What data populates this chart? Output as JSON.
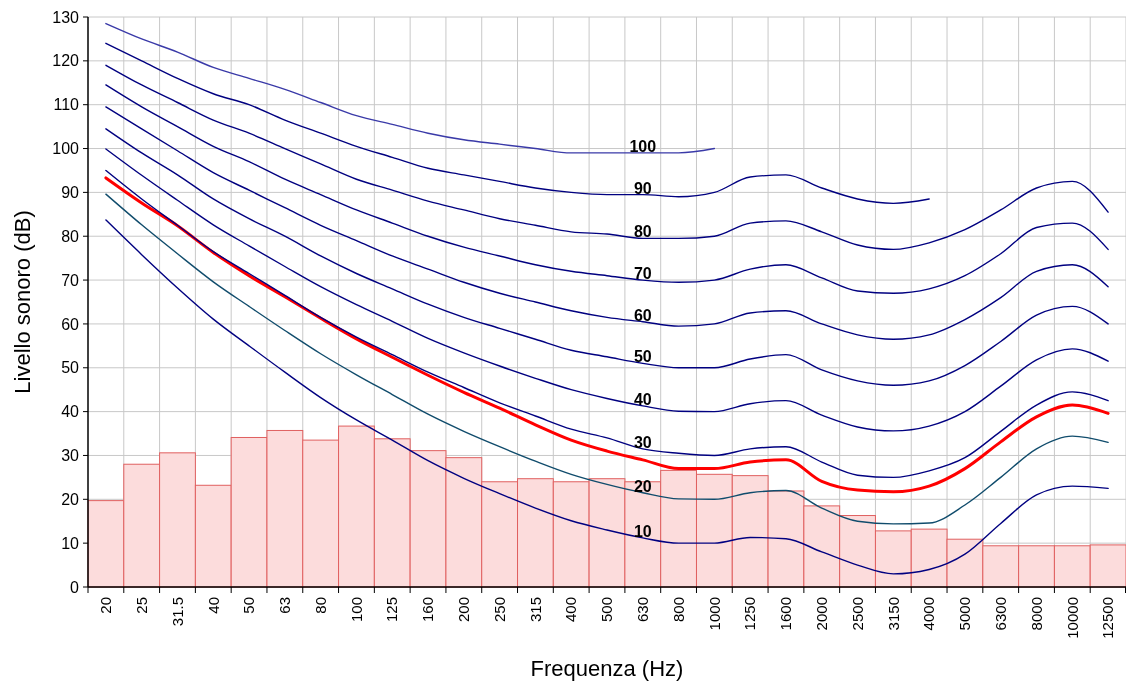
{
  "chart_data": {
    "type": "bar",
    "xlabel": "Frequenza (Hz)",
    "ylabel": "Livello sonoro (dB)",
    "categories": [
      "20",
      "25",
      "31.5",
      "40",
      "50",
      "63",
      "80",
      "100",
      "125",
      "160",
      "200",
      "250",
      "315",
      "400",
      "500",
      "630",
      "800",
      "1000",
      "1250",
      "1600",
      "2000",
      "2500",
      "3150",
      "4000",
      "5000",
      "6300",
      "8000",
      "10000",
      "12500"
    ],
    "ylim": [
      0,
      130
    ],
    "yticks": [
      0,
      10,
      20,
      30,
      40,
      50,
      60,
      70,
      80,
      90,
      100,
      110,
      120,
      130
    ],
    "grid": true,
    "marker": "none",
    "line_style": "solid",
    "series": [
      {
        "color": "#fcdcdc",
        "values": [
          19.7,
          28,
          30.6,
          23.2,
          34.1,
          35.7,
          33.5,
          36.7,
          33.8,
          31.1,
          29.5,
          24,
          24.7,
          24,
          24.7,
          24,
          26.6,
          25.7,
          25.4,
          21.9,
          18.5,
          16.3,
          12.8,
          13.2,
          10.9,
          9.4,
          9.4,
          9.4,
          9.6
        ]
      },
      {
        "type": "line",
        "name": "10",
        "color": "#000080",
        "values": [
          83.7,
          75.8,
          68.2,
          61.1,
          55,
          49,
          43.2,
          38.1,
          33.5,
          28.8,
          24.8,
          21.3,
          18,
          15.1,
          13,
          11.2,
          10,
          10,
          11.3,
          11,
          8,
          5,
          3,
          4,
          7.5,
          14.5,
          21,
          23,
          22.5
        ]
      },
      {
        "type": "line",
        "name": "20",
        "color": "#104c6c",
        "values": [
          89.6,
          82.6,
          76,
          69.6,
          64,
          58.5,
          53.2,
          48.4,
          43.9,
          39.4,
          35.5,
          32,
          28.7,
          25.7,
          23.4,
          21.5,
          20.1,
          20,
          21.5,
          22,
          18,
          15,
          14.4,
          14.6,
          18.7,
          25,
          31.5,
          34.4,
          33
        ]
      },
      {
        "type": "line",
        "color": "#ff0000",
        "values": [
          93.3,
          87.6,
          82.4,
          76.3,
          71,
          66.2,
          61.3,
          56.6,
          52.4,
          48.3,
          44.4,
          40.8,
          37,
          33.5,
          31,
          29,
          27,
          27,
          28.5,
          29,
          24.1,
          22.1,
          21.7,
          23,
          27,
          33.1,
          38.8,
          41.5,
          39.6
        ]
      },
      {
        "type": "line",
        "name": "30",
        "color": "#000080",
        "values": [
          95,
          88.5,
          82.5,
          76.5,
          71.5,
          66.5,
          61.5,
          57,
          53,
          49,
          45.5,
          42,
          39,
          36,
          34,
          31.5,
          30.5,
          30,
          31.5,
          32,
          28.5,
          25.5,
          25,
          26.5,
          29.5,
          35.5,
          41.5,
          44.5,
          42.5
        ]
      },
      {
        "type": "line",
        "name": "40",
        "color": "#000080",
        "values": [
          99.9,
          93.9,
          88.2,
          82.6,
          77.8,
          73.1,
          68.5,
          64.4,
          60.6,
          56.7,
          53.4,
          50.4,
          47.6,
          45,
          43,
          41.3,
          40.1,
          40,
          41.8,
          42.5,
          39.2,
          36.5,
          35.6,
          36.7,
          40,
          45.8,
          51.8,
          54.3,
          51.5
        ]
      },
      {
        "type": "line",
        "name": "50",
        "color": "#000080",
        "values": [
          104.5,
          99,
          94,
          88.5,
          84,
          80,
          75.5,
          71.5,
          68,
          64.5,
          61.5,
          59,
          56.5,
          54,
          52.5,
          51,
          50,
          50,
          52,
          53,
          49.5,
          47,
          46,
          47,
          50.5,
          56,
          62,
          64,
          60
        ]
      },
      {
        "type": "line",
        "name": "60",
        "color": "#000080",
        "values": [
          109.5,
          104.5,
          99.5,
          94.5,
          90.5,
          86.5,
          82.5,
          79,
          75.5,
          72.5,
          69.5,
          67,
          65,
          63,
          61.5,
          60.5,
          59.5,
          60,
          62.5,
          63,
          60,
          57.5,
          56.5,
          57.5,
          61,
          66,
          72,
          73.5,
          68.5
        ]
      },
      {
        "type": "line",
        "name": "70",
        "color": "#000080",
        "values": [
          114.5,
          109.5,
          105,
          100.5,
          97,
          93,
          89.5,
          86,
          83,
          80,
          77.5,
          75.5,
          73.5,
          72,
          71,
          70,
          69.5,
          70,
          72.5,
          73.5,
          70.5,
          67.5,
          67,
          68,
          71,
          76,
          82,
          83,
          77
        ]
      },
      {
        "type": "line",
        "name": "80",
        "color": "#000080",
        "values": [
          119,
          114.5,
          110.5,
          106.5,
          103.5,
          100,
          96.5,
          93,
          90.5,
          88,
          86,
          84,
          82.5,
          81,
          80.5,
          79.5,
          79.5,
          80,
          83,
          83.5,
          81,
          78,
          77,
          78.5,
          81.5,
          86,
          91,
          92.5,
          85.5
        ]
      },
      {
        "type": "line",
        "name": "90",
        "color": "#000080",
        "values": [
          124,
          120,
          116,
          112.5,
          110,
          106.5,
          103.5,
          100.5,
          98,
          95.5,
          94,
          92.5,
          91,
          90,
          89.5,
          89.5,
          89,
          90,
          93.5,
          94,
          91,
          88.5,
          87.5,
          88.5,
          null,
          null,
          null,
          null,
          null
        ]
      },
      {
        "type": "line",
        "name": "100",
        "color": "#3a3aa8",
        "values": [
          128.5,
          125,
          122,
          118.5,
          116,
          113.5,
          110.5,
          107.5,
          105.5,
          103.5,
          102,
          101,
          100,
          99,
          99,
          99,
          99,
          100,
          null,
          null,
          null,
          null,
          null,
          null,
          null,
          null,
          null,
          null,
          null
        ]
      }
    ]
  }
}
